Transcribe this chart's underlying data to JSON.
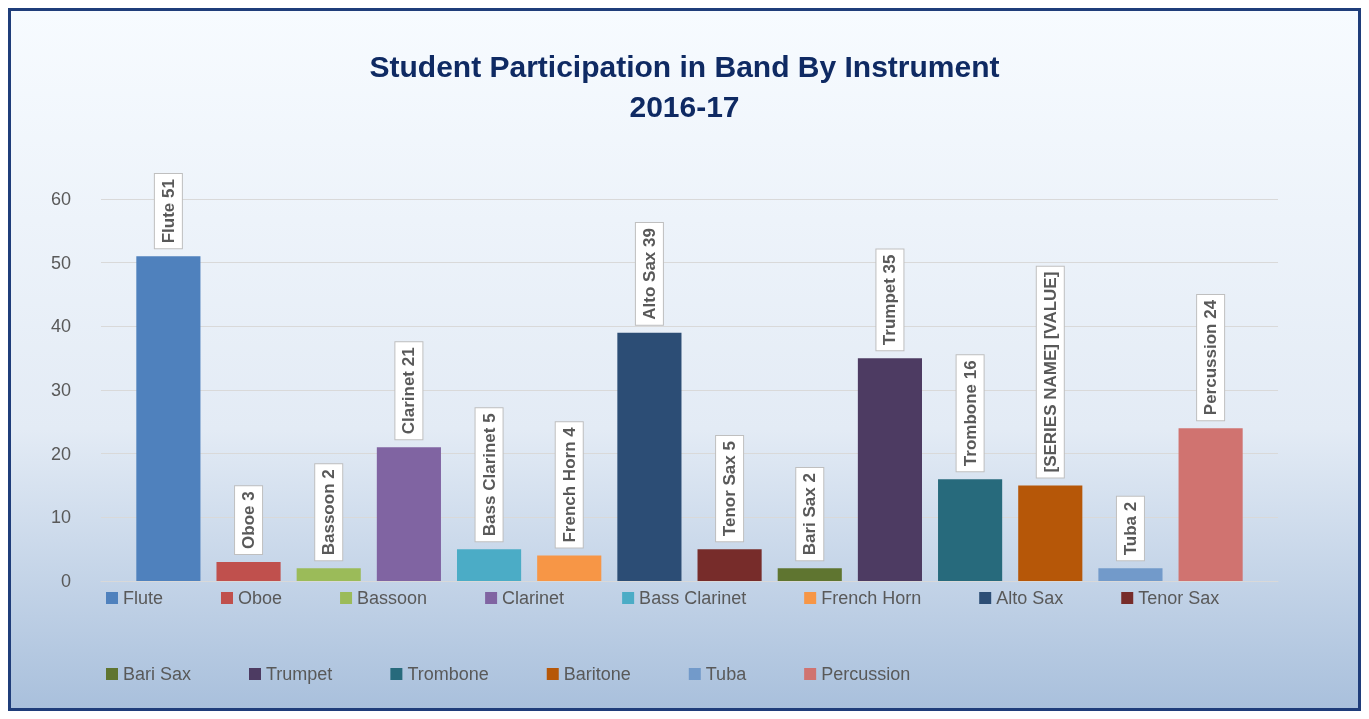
{
  "chart_data": {
    "type": "bar",
    "title": "Student Participation in Band By Instrument",
    "subtitle": "2016-17",
    "categories": [
      null
    ],
    "ylim": [
      0,
      60
    ],
    "yticks": [
      0,
      10,
      20,
      30,
      40,
      50,
      60
    ],
    "grid": "y",
    "legend": "bottom",
    "series": [
      {
        "name": "Flute",
        "color": "#4f81bd",
        "values": [
          51
        ],
        "value_labels": [
          "Flute 51"
        ]
      },
      {
        "name": "Oboe",
        "color": "#c0504d",
        "values": [
          3
        ],
        "value_labels": [
          "Oboe 3"
        ]
      },
      {
        "name": "Bassoon",
        "color": "#9bbb59",
        "values": [
          2
        ],
        "value_labels": [
          "Bassoon 2"
        ]
      },
      {
        "name": "Clarinet",
        "color": "#8064a2",
        "values": [
          21
        ],
        "value_labels": [
          "Clarinet 21"
        ]
      },
      {
        "name": "Bass Clarinet",
        "color": "#4bacc6",
        "values": [
          5
        ],
        "value_labels": [
          "Bass Clarinet 5"
        ]
      },
      {
        "name": "French Horn",
        "color": "#f79646",
        "values": [
          4
        ],
        "value_labels": [
          "French Horn 4"
        ]
      },
      {
        "name": "Alto Sax",
        "color": "#2c4d75",
        "values": [
          39
        ],
        "value_labels": [
          "Alto Sax 39"
        ]
      },
      {
        "name": "Tenor Sax",
        "color": "#772c2a",
        "values": [
          5
        ],
        "value_labels": [
          "Tenor Sax 5"
        ]
      },
      {
        "name": "Bari Sax",
        "color": "#5f7530",
        "values": [
          2
        ],
        "value_labels": [
          "Bari Sax 2"
        ]
      },
      {
        "name": "Trumpet",
        "color": "#4d3b62",
        "values": [
          35
        ],
        "value_labels": [
          "Trumpet 35"
        ]
      },
      {
        "name": "Trombone",
        "color": "#276a7c",
        "values": [
          16
        ],
        "value_labels": [
          "Trombone 16"
        ]
      },
      {
        "name": "Baritone",
        "color": "#b65708",
        "values": [
          15
        ],
        "value_labels": [
          "[SERIES NAME] [VALUE]"
        ]
      },
      {
        "name": "Tuba",
        "color": "#729aca",
        "values": [
          2
        ],
        "value_labels": [
          "Tuba 2"
        ]
      },
      {
        "name": "Percussion",
        "color": "#d07370",
        "values": [
          24
        ],
        "value_labels": [
          "Percussion 24"
        ]
      }
    ]
  }
}
